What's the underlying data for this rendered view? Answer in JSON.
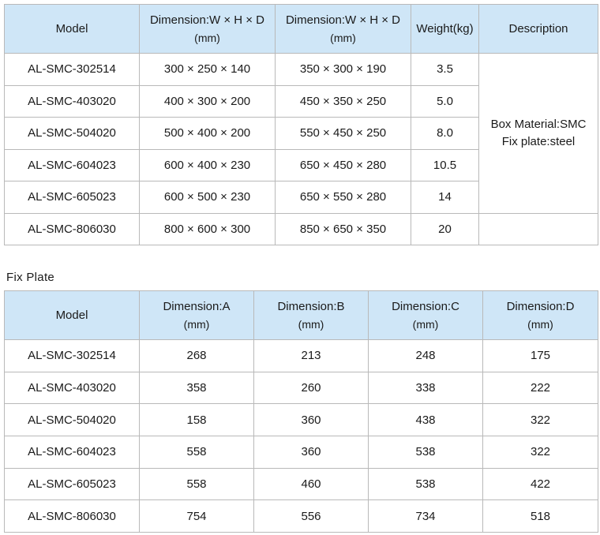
{
  "box_table": {
    "headers": {
      "model": "Model",
      "dim_inner_line1": "Dimension:W × H × D",
      "dim_inner_line2": "(mm)",
      "dim_outer_line1": "Dimension:W × H × D",
      "dim_outer_line2": "(mm)",
      "weight": "Weight(kg)",
      "description": "Description"
    },
    "rows": [
      {
        "model": "AL-SMC-302514",
        "dim_inner": "300 × 250 × 140",
        "dim_outer": "350 × 300 × 190",
        "weight": "3.5"
      },
      {
        "model": "AL-SMC-403020",
        "dim_inner": "400 × 300 × 200",
        "dim_outer": "450 × 350 × 250",
        "weight": "5.0"
      },
      {
        "model": "AL-SMC-504020",
        "dim_inner": "500 × 400 × 200",
        "dim_outer": "550 × 450 × 250",
        "weight": "8.0"
      },
      {
        "model": "AL-SMC-604023",
        "dim_inner": "600 × 400 × 230",
        "dim_outer": "650 × 450 × 280",
        "weight": "10.5"
      },
      {
        "model": "AL-SMC-605023",
        "dim_inner": "600 × 500 × 230",
        "dim_outer": "650 × 550 × 280",
        "weight": "14"
      },
      {
        "model": "AL-SMC-806030",
        "dim_inner": "800 × 600 × 300",
        "dim_outer": "850 × 650 × 350",
        "weight": "20"
      }
    ],
    "description_line1": "Box Material:SMC",
    "description_line2": "Fix plate:steel"
  },
  "fix_plate_label": "Fix Plate",
  "plate_table": {
    "headers": {
      "model": "Model",
      "a_line1": "Dimension:A",
      "a_line2": "(mm)",
      "b_line1": "Dimension:B",
      "b_line2": "(mm)",
      "c_line1": "Dimension:C",
      "c_line2": "(mm)",
      "d_line1": "Dimension:D",
      "d_line2": "(mm)"
    },
    "rows": [
      {
        "model": "AL-SMC-302514",
        "a": "268",
        "b": "213",
        "c": "248",
        "d": "175"
      },
      {
        "model": "AL-SMC-403020",
        "a": "358",
        "b": "260",
        "c": "338",
        "d": "222"
      },
      {
        "model": "AL-SMC-504020",
        "a": "158",
        "b": "360",
        "c": "438",
        "d": "322"
      },
      {
        "model": "AL-SMC-604023",
        "a": "558",
        "b": "360",
        "c": "538",
        "d": "322"
      },
      {
        "model": "AL-SMC-605023",
        "a": "558",
        "b": "460",
        "c": "538",
        "d": "422"
      },
      {
        "model": "AL-SMC-806030",
        "a": "754",
        "b": "556",
        "c": "734",
        "d": "518"
      }
    ]
  }
}
